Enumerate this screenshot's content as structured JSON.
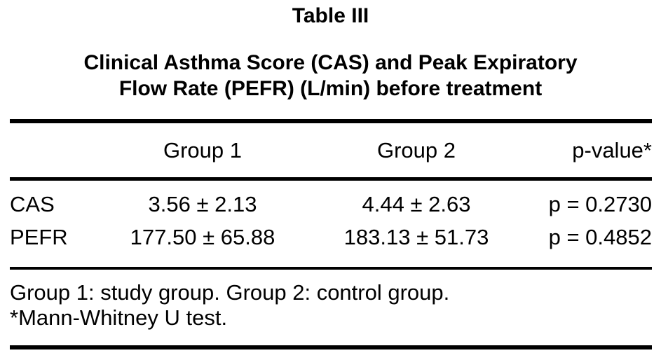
{
  "table": {
    "number": "Table III",
    "title_line1": "Clinical Asthma Score (CAS) and Peak Expiratory",
    "title_line2": "Flow Rate (PEFR) (L/min) before treatment",
    "columns": [
      "",
      "Group 1",
      "Group 2",
      "p-value*"
    ],
    "rows": [
      {
        "label": "CAS",
        "group1": "3.56 ± 2.13",
        "group2": "4.44 ± 2.63",
        "pvalue": "p = 0.2730"
      },
      {
        "label": "PEFR",
        "group1": "177.50 ± 65.88",
        "group2": "183.13 ± 51.73",
        "pvalue": "p = 0.4852"
      }
    ],
    "footnotes": [
      "Group 1: study group. Group 2: control group.",
      "*Mann-Whitney U test."
    ],
    "colors": {
      "text": "#000000",
      "background": "#ffffff",
      "rule": "#000000"
    }
  }
}
